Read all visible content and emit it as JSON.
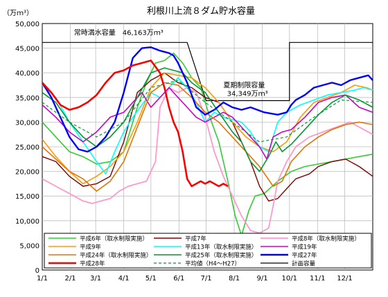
{
  "chart_data": {
    "type": "line",
    "title": "利根川上流８ダム貯水容量",
    "yunit": "（万ｍ³）",
    "ylim": [
      0,
      50000
    ],
    "yticks": [
      0,
      5000,
      10000,
      15000,
      20000,
      25000,
      30000,
      35000,
      40000,
      45000,
      50000
    ],
    "ytick_labels": [
      "0",
      "5,000",
      "10,000",
      "15,000",
      "20,000",
      "25,000",
      "30,000",
      "35,000",
      "40,000",
      "45,000",
      "50,000"
    ],
    "x_labels": [
      "1/1",
      "2/1",
      "3/1",
      "4/1",
      "5/1",
      "6/1",
      "7/1",
      "8/1",
      "9/1",
      "10/1",
      "11/1",
      "12/1"
    ],
    "x_label_days": [
      0,
      31,
      59,
      90,
      120,
      151,
      181,
      212,
      243,
      273,
      304,
      334
    ],
    "xlim": [
      0,
      365
    ],
    "grid": true,
    "legend_position": "bottom",
    "annotations": [
      {
        "text": "常時満水容量　46,163万ｍ³",
        "x": 35,
        "y": 47700
      },
      {
        "text": "夏期制限容量",
        "x": 200,
        "y": 37000
      },
      {
        "text": "34,349万ｍ³",
        "x": 204,
        "y": 35300
      }
    ],
    "capacity": {
      "name": "計画容量",
      "x": [
        0,
        160,
        160,
        181,
        181,
        273,
        273,
        365
      ],
      "y": [
        46163,
        46163,
        46163,
        34349,
        34349,
        34349,
        46163,
        46163
      ],
      "color": "#000000"
    },
    "series": [
      {
        "name": "平成6年（取水制限実施）",
        "color": "#33cc33",
        "width": 1.6,
        "dash": "",
        "x": [
          0,
          15,
          30,
          45,
          60,
          75,
          90,
          105,
          115,
          125,
          135,
          145,
          155,
          165,
          175,
          185,
          195,
          205,
          213,
          220,
          228,
          235,
          245,
          260,
          275,
          290,
          305,
          320,
          335,
          350,
          365
        ],
        "y": [
          30000,
          27000,
          24000,
          23000,
          21500,
          22000,
          24000,
          33000,
          38000,
          42000,
          42500,
          44000,
          42000,
          39000,
          37000,
          31000,
          26000,
          18000,
          11000,
          7000,
          12000,
          15000,
          15500,
          18000,
          20000,
          21000,
          21500,
          22000,
          22500,
          23000,
          23500
        ]
      },
      {
        "name": "平成7年",
        "color": "#800000",
        "width": 1.4,
        "dash": "",
        "x": [
          0,
          15,
          30,
          45,
          60,
          75,
          90,
          105,
          120,
          135,
          150,
          165,
          180,
          195,
          210,
          220,
          230,
          240,
          250,
          260,
          270,
          280,
          295,
          305,
          320,
          335,
          350,
          365
        ],
        "y": [
          23000,
          22000,
          19000,
          17000,
          17500,
          19000,
          26000,
          36000,
          38500,
          40000,
          38000,
          37000,
          35000,
          34000,
          30000,
          26000,
          22000,
          17000,
          14000,
          14500,
          16500,
          18500,
          19500,
          21000,
          22000,
          22500,
          21000,
          19000
        ]
      },
      {
        "name": "平成8年（取水制限実施）",
        "color": "#ff99cc",
        "width": 1.8,
        "dash": "",
        "x": [
          0,
          15,
          30,
          45,
          55,
          65,
          75,
          85,
          95,
          105,
          115,
          125,
          130,
          140,
          150,
          160,
          170,
          180,
          190,
          200,
          210,
          220,
          230,
          240,
          250,
          255,
          260,
          270,
          280,
          295,
          310,
          325,
          340,
          355,
          365
        ],
        "y": [
          18500,
          17000,
          15500,
          14000,
          13500,
          14000,
          14500,
          16000,
          17000,
          17500,
          18000,
          22000,
          33000,
          37000,
          36000,
          37000,
          36000,
          31000,
          24000,
          19000,
          15000,
          11000,
          8000,
          7500,
          8500,
          13000,
          18000,
          22000,
          25000,
          27000,
          28000,
          29000,
          30000,
          28500,
          27500
        ]
      },
      {
        "name": "平成9年",
        "color": "#ff9900",
        "width": 1.6,
        "dash": "",
        "x": [
          0,
          15,
          30,
          45,
          60,
          75,
          90,
          105,
          120,
          135,
          150,
          165,
          180,
          195,
          210,
          225,
          240,
          255,
          270,
          285,
          300,
          315,
          330,
          345,
          358,
          365
        ],
        "y": [
          26500,
          23000,
          20000,
          17500,
          19000,
          21000,
          24000,
          30000,
          37000,
          40000,
          39500,
          39000,
          37000,
          34000,
          30000,
          27000,
          25000,
          24000,
          26000,
          31000,
          34000,
          35000,
          36000,
          37500,
          37000,
          36500
        ]
      },
      {
        "name": "平成13年（取水制限実施）",
        "color": "#00ffff",
        "width": 1.6,
        "dash": "",
        "x": [
          0,
          15,
          30,
          45,
          60,
          70,
          80,
          90,
          100,
          110,
          120,
          130,
          140,
          150,
          160,
          170,
          180,
          190,
          200,
          210,
          220,
          230,
          240,
          250,
          260,
          270,
          285,
          300,
          315,
          330,
          345,
          355,
          365
        ],
        "y": [
          37500,
          35000,
          30000,
          26000,
          22000,
          19500,
          24000,
          28000,
          31000,
          33500,
          36000,
          35000,
          37000,
          39000,
          37000,
          34000,
          30000,
          32000,
          31000,
          30500,
          30000,
          28000,
          25000,
          24000,
          30000,
          32000,
          33500,
          34500,
          35500,
          36000,
          36500,
          37000,
          36500
        ]
      },
      {
        "name": "平成19年",
        "color": "#cc00cc",
        "width": 1.6,
        "dash": "",
        "x": [
          0,
          15,
          30,
          45,
          60,
          75,
          90,
          100,
          110,
          120,
          130,
          140,
          150,
          160,
          170,
          180,
          190,
          200,
          210,
          220,
          230,
          240,
          248,
          255,
          265,
          275,
          290,
          305,
          320,
          335,
          350,
          365
        ],
        "y": [
          33500,
          31000,
          28000,
          26000,
          28000,
          31000,
          32000,
          34000,
          36000,
          33000,
          35000,
          37000,
          35000,
          33000,
          31000,
          30000,
          31000,
          32000,
          31000,
          29000,
          27000,
          25000,
          22500,
          27000,
          28000,
          28500,
          31000,
          34000,
          35000,
          35500,
          33000,
          32000
        ]
      },
      {
        "name": "平成24年（取水制限実施）",
        "color": "#e67300",
        "width": 1.6,
        "dash": "",
        "x": [
          0,
          15,
          30,
          45,
          60,
          75,
          90,
          105,
          120,
          135,
          150,
          165,
          180,
          195,
          210,
          225,
          240,
          255,
          265,
          275,
          290,
          305,
          320,
          335,
          350,
          365
        ],
        "y": [
          25000,
          22500,
          20000,
          18500,
          16000,
          18000,
          22000,
          29000,
          36000,
          38000,
          37500,
          35000,
          32000,
          30000,
          27000,
          24000,
          21000,
          17000,
          18000,
          22000,
          25000,
          27000,
          28500,
          29500,
          30000,
          29500
        ]
      },
      {
        "name": "平成25年（取水制限実施）",
        "color": "#009933",
        "width": 1.6,
        "dash": "",
        "x": [
          0,
          15,
          30,
          45,
          60,
          75,
          90,
          105,
          120,
          135,
          145,
          155,
          165,
          180,
          195,
          210,
          220,
          230,
          240,
          250,
          258,
          265,
          275,
          290,
          305,
          320,
          335,
          350,
          365
        ],
        "y": [
          36000,
          34000,
          30000,
          27000,
          25000,
          27000,
          30000,
          35000,
          40000,
          41000,
          40500,
          40000,
          38000,
          36000,
          32000,
          28000,
          26000,
          22000,
          20000,
          23000,
          26000,
          24000,
          25500,
          28500,
          31500,
          34000,
          35500,
          34500,
          33000
        ]
      },
      {
        "name": "平成27年",
        "color": "#0000ff",
        "width": 2.4,
        "dash": "",
        "x": [
          0,
          10,
          20,
          30,
          40,
          50,
          60,
          70,
          80,
          90,
          100,
          110,
          120,
          130,
          140,
          145,
          150,
          160,
          170,
          180,
          190,
          200,
          210,
          220,
          230,
          245,
          260,
          270,
          275,
          280,
          290,
          300,
          310,
          320,
          330,
          340,
          350,
          360,
          365
        ],
        "y": [
          38000,
          35000,
          31000,
          27000,
          24500,
          24000,
          25000,
          27000,
          30000,
          36000,
          43000,
          45000,
          45200,
          44500,
          44000,
          43500,
          42000,
          38000,
          33000,
          31500,
          32500,
          34000,
          33000,
          32500,
          33000,
          32000,
          31500,
          32000,
          33500,
          34500,
          35500,
          37000,
          37500,
          38000,
          37500,
          38500,
          39000,
          39500,
          38500
        ]
      },
      {
        "name": "平成28年",
        "color": "#ff0000",
        "width": 2.6,
        "dash": "",
        "x": [
          0,
          10,
          20,
          30,
          40,
          50,
          60,
          70,
          80,
          90,
          100,
          110,
          120,
          130,
          135,
          140,
          145,
          150,
          155,
          160,
          165,
          170,
          175,
          180,
          185,
          190,
          195,
          200,
          205
        ],
        "y": [
          38000,
          36000,
          33500,
          32500,
          33000,
          34000,
          35500,
          38000,
          40000,
          40500,
          41500,
          42000,
          42500,
          40000,
          37000,
          33000,
          30000,
          28000,
          24000,
          18500,
          17000,
          17500,
          18000,
          17500,
          18000,
          17500,
          17000,
          17500,
          17000
        ]
      },
      {
        "name": "平均値（H4～H27）",
        "color": "#009933",
        "width": 1.2,
        "dash": "4,3",
        "x": [
          0,
          30,
          60,
          90,
          120,
          150,
          180,
          210,
          240,
          270,
          300,
          330,
          365
        ],
        "y": [
          34000,
          30000,
          27000,
          30000,
          37000,
          38500,
          34000,
          30000,
          26000,
          27000,
          31000,
          34500,
          34000
        ]
      }
    ]
  }
}
